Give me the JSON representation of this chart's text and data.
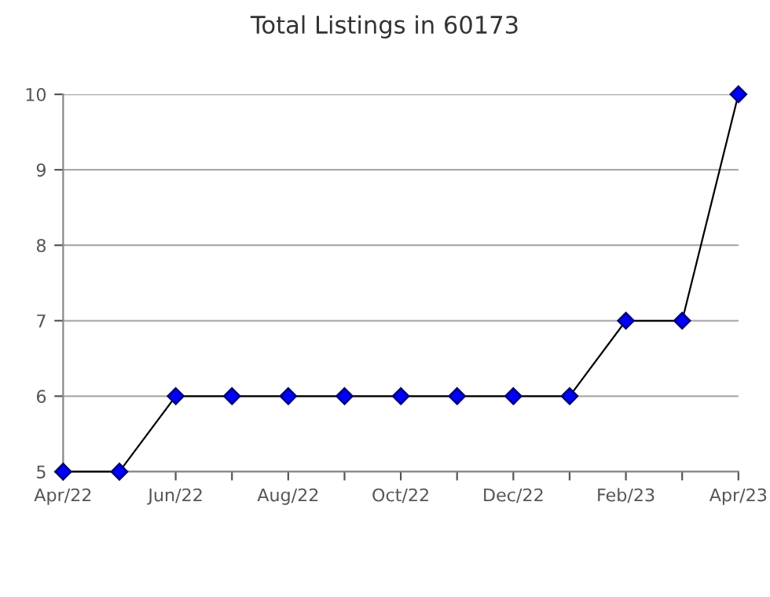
{
  "chart_data": {
    "type": "line",
    "title": "Total Listings in 60173",
    "categories": [
      "Apr/22",
      null,
      "Jun/22",
      null,
      "Aug/22",
      null,
      "Oct/22",
      null,
      "Dec/22",
      null,
      "Feb/23",
      null,
      "Apr/23"
    ],
    "series": [
      {
        "color": "#0000ff",
        "values": [
          5,
          5,
          6,
          6,
          6,
          6,
          6,
          6,
          6,
          6,
          7,
          7,
          10
        ]
      }
    ],
    "ylim": [
      5,
      10
    ],
    "yticks": [
      5,
      6,
      7,
      8,
      9,
      10
    ],
    "grid": "y",
    "marker": "diamond",
    "line_style": "solid",
    "legend": false
  }
}
